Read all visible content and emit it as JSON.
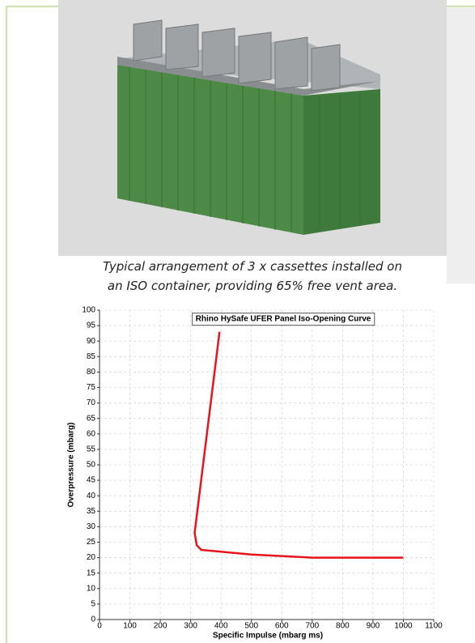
{
  "caption": [
    "Typical arrangement of 3 x cassettes installed on",
    "an ISO container, providing 65% free vent area."
  ],
  "chart_data": {
    "type": "line",
    "title": "Rhino HySafe UFER Panel Iso-Opening Curve",
    "x_label": "Specific Impulse (mbarg ms)",
    "y_label": "Overpressure (mbarg)",
    "x": [
      395,
      313,
      320,
      335,
      500,
      700,
      1000
    ],
    "series": [
      {
        "color": "#e8141b",
        "values": [
          93,
          28,
          24,
          22.5,
          21,
          20,
          20
        ]
      }
    ],
    "xlim": [
      0,
      1100
    ],
    "ylim": [
      0,
      100
    ],
    "xticks": [
      0,
      100,
      200,
      300,
      400,
      500,
      600,
      700,
      800,
      900,
      1000,
      1100
    ],
    "yticks": [
      0,
      5,
      10,
      15,
      20,
      25,
      30,
      35,
      40,
      45,
      50,
      55,
      60,
      65,
      70,
      75,
      80,
      85,
      90,
      95,
      100
    ],
    "grid": true
  }
}
